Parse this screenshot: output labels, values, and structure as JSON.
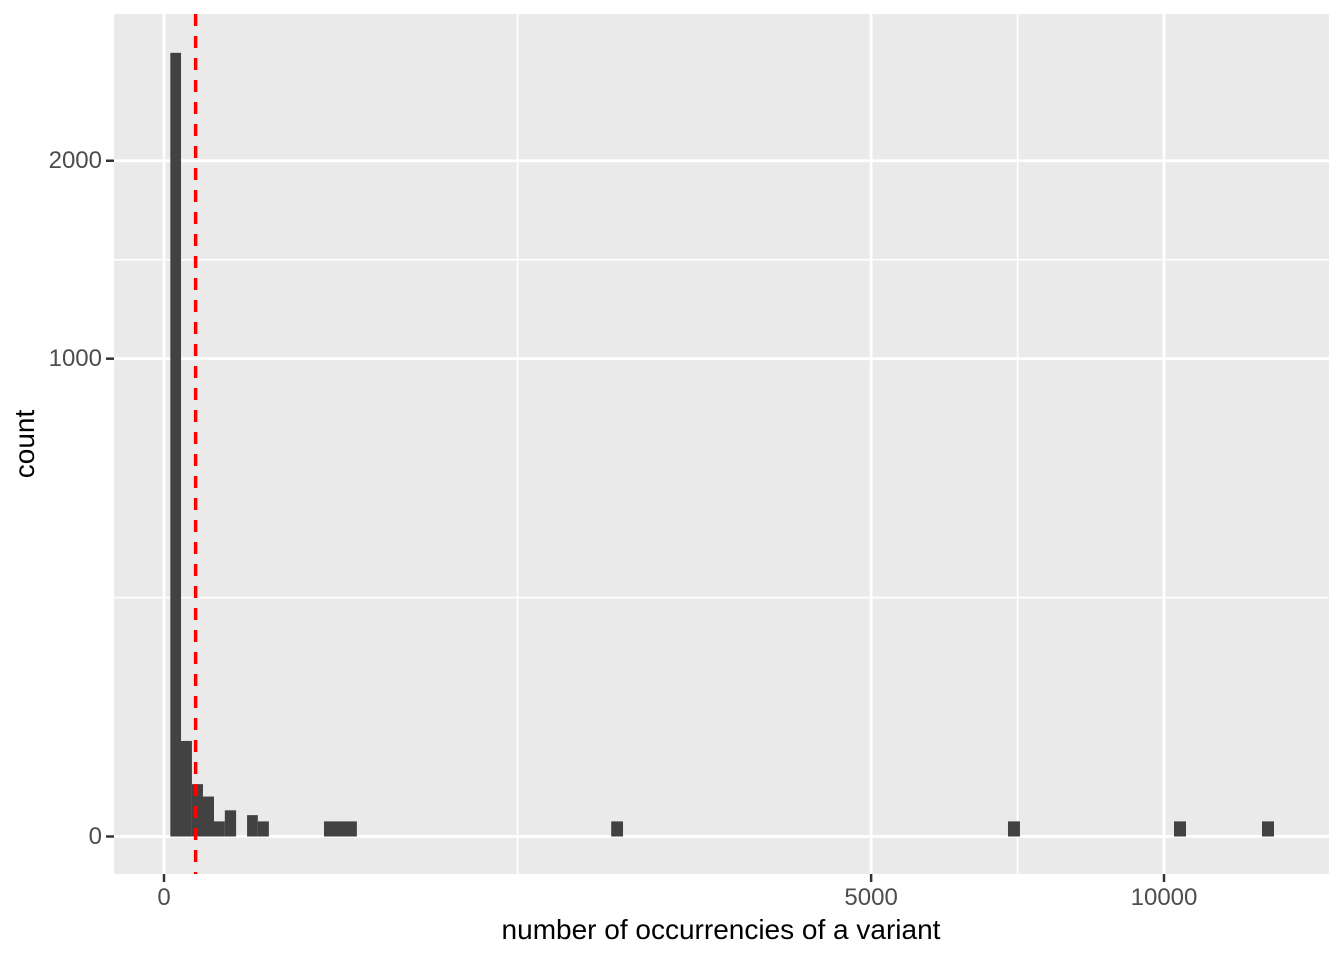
{
  "figure": {
    "background_color": "#FFFFFF",
    "panel_background_color": "#EAEAEA",
    "gridline_color": "#FFFFFF",
    "axis_text_color": "#4D4D4D",
    "axis_title_color": "#000000",
    "tick_mark_color": "#333333"
  },
  "chart_data": {
    "type": "bar",
    "subtype": "histogram",
    "title": "",
    "xlabel": "number of occurrencies of a variant",
    "ylabel": "count",
    "x_scale": "sqrt",
    "y_scale": "sqrt",
    "xlim": [
      0,
      13570
    ],
    "ylim": [
      0,
      2965
    ],
    "grid": "on",
    "legend": "none",
    "bar_color": "#424242",
    "x_ticks": [
      {
        "value": 0,
        "label": "0"
      },
      {
        "value": 5000,
        "label": "5000"
      },
      {
        "value": 10000,
        "label": "10000"
      }
    ],
    "y_ticks": [
      {
        "value": 0,
        "label": "0"
      },
      {
        "value": 1000,
        "label": "1000"
      },
      {
        "value": 2000,
        "label": "2000"
      }
    ],
    "x_minor_gridlines": [
      1250,
      7286
    ],
    "y_minor_gridlines": [
      250,
      1457
    ],
    "bars": [
      {
        "x0": 0.4,
        "x1": 2.9,
        "count": 2690
      },
      {
        "x0": 2.9,
        "x1": 7.8,
        "count": 40
      },
      {
        "x0": 7.8,
        "x1": 15.2,
        "count": 12
      },
      {
        "x0": 15.2,
        "x1": 25,
        "count": 7
      },
      {
        "x0": 25,
        "x1": 37,
        "count": 1
      },
      {
        "x0": 37,
        "x1": 52,
        "count": 3
      },
      {
        "x0": 69,
        "x1": 88,
        "count": 2
      },
      {
        "x0": 88,
        "x1": 110,
        "count": 1
      },
      {
        "x0": 256,
        "x1": 372,
        "count": 1
      },
      {
        "x0": 2000,
        "x1": 2107,
        "count": 1
      },
      {
        "x0": 7123,
        "x1": 7327,
        "count": 1
      },
      {
        "x0": 10201,
        "x1": 10445,
        "count": 1
      },
      {
        "x0": 12056,
        "x1": 12321,
        "count": 1
      }
    ],
    "vline": {
      "value": 10,
      "color": "#FF0000",
      "linetype": "dashed"
    }
  }
}
